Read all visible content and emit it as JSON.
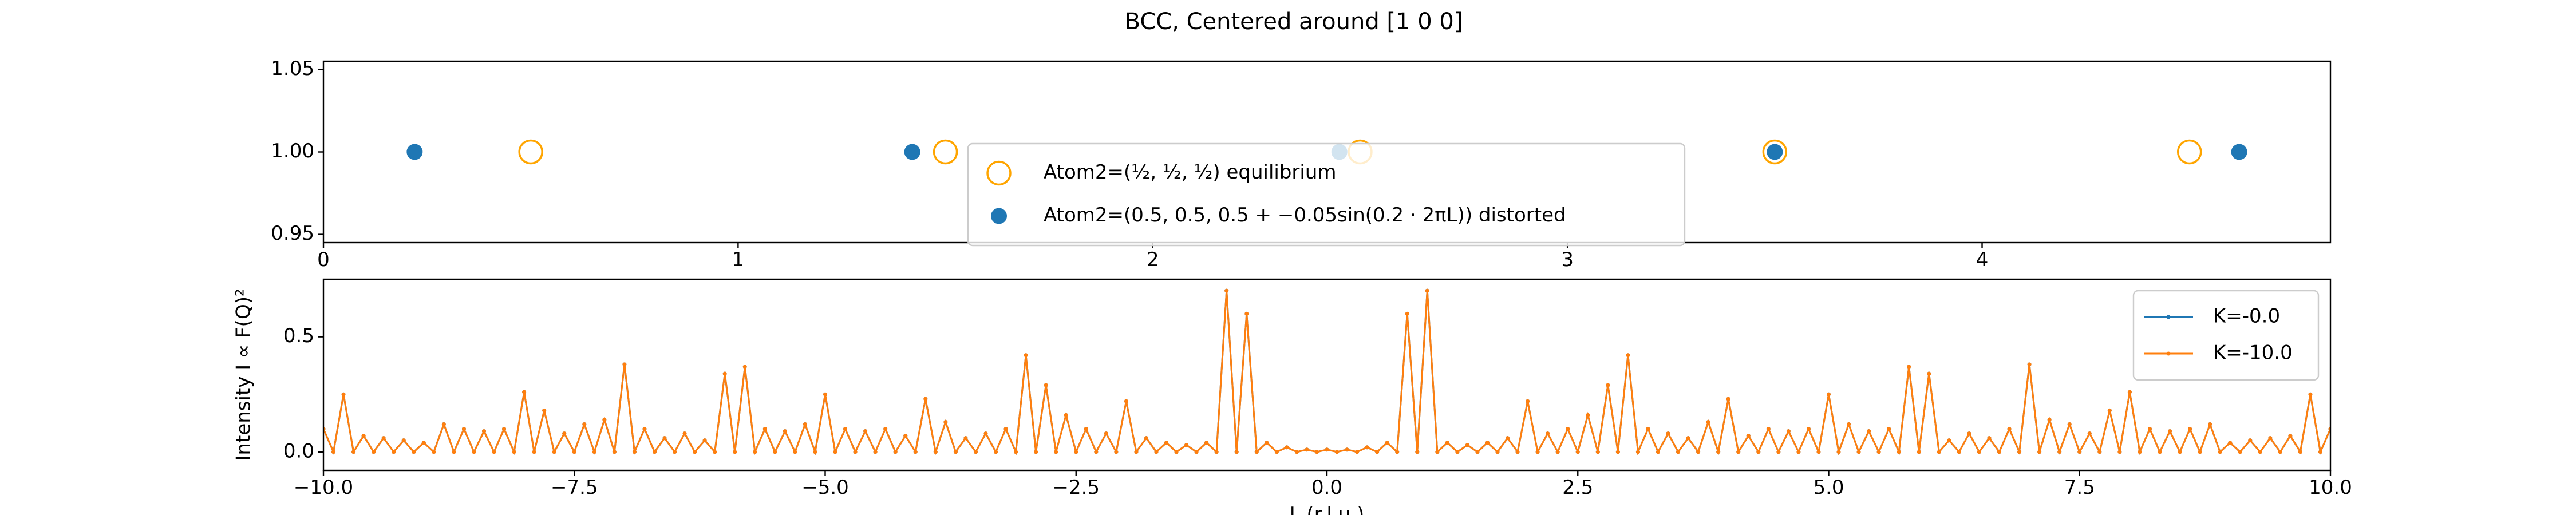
{
  "chart_data": [
    {
      "type": "scatter",
      "title": "BCC, Centered around [1 0 0]",
      "series": [
        {
          "name": "Atom2=(½, ½, ½) equilibrium",
          "color": "#ffa500",
          "filled": false,
          "x": [
            0.5,
            1.5,
            2.5,
            3.5,
            4.5
          ],
          "values": [
            1,
            1,
            1,
            1,
            1
          ]
        },
        {
          "name": "Atom2=(0.5, 0.5, 0.5 + −0.05sin(0.2 · 2πL)) distorted",
          "color": "#1f77b4",
          "filled": true,
          "x": [
            0.22,
            1.42,
            2.45,
            3.5,
            4.62
          ],
          "values": [
            1,
            1,
            1,
            1,
            1
          ]
        }
      ],
      "xlim": [
        0,
        4.84
      ],
      "xticks": [
        0,
        1,
        2,
        3,
        4
      ],
      "ylim": [
        0.945,
        1.055
      ],
      "yticks": [
        0.95,
        {
          "value": 1,
          "label": "1.00"
        },
        1.05
      ],
      "legend": "lower center"
    },
    {
      "type": "line",
      "x_label": "L (r.l.u.)",
      "y_label": "Intensity I ∝ F(Q)²",
      "x": [
        -10,
        -9.9,
        -9.8,
        -9.7,
        -9.6,
        -9.5,
        -9.4,
        -9.3,
        -9.2,
        -9.1,
        -9,
        -8.9,
        -8.8,
        -8.7,
        -8.6,
        -8.5,
        -8.4,
        -8.3,
        -8.2,
        -8.1,
        -8,
        -7.9,
        -7.8,
        -7.7,
        -7.6,
        -7.5,
        -7.4,
        -7.3,
        -7.2,
        -7.1,
        -7,
        -6.9,
        -6.8,
        -6.7,
        -6.6,
        -6.5,
        -6.4,
        -6.3,
        -6.2,
        -6.1,
        -6,
        -5.9,
        -5.8,
        -5.7,
        -5.6,
        -5.5,
        -5.4,
        -5.3,
        -5.2,
        -5.1,
        -5,
        -4.9,
        -4.8,
        -4.7,
        -4.6,
        -4.5,
        -4.4,
        -4.3,
        -4.2,
        -4.1,
        -4,
        -3.9,
        -3.8,
        -3.7,
        -3.6,
        -3.5,
        -3.4,
        -3.3,
        -3.2,
        -3.1,
        -3,
        -2.9,
        -2.8,
        -2.7,
        -2.6,
        -2.5,
        -2.4,
        -2.3,
        -2.2,
        -2.1,
        -2,
        -1.9,
        -1.8,
        -1.7,
        -1.6,
        -1.5,
        -1.4,
        -1.3,
        -1.2,
        -1.1,
        -1,
        -0.9,
        -0.8,
        -0.7,
        -0.6,
        -0.5,
        -0.4,
        -0.3,
        -0.2,
        -0.1,
        0,
        0.1,
        0.2,
        0.3,
        0.4,
        0.5,
        0.6,
        0.7,
        0.8,
        0.9,
        1,
        1.1,
        1.2,
        1.3,
        1.4,
        1.5,
        1.6,
        1.7,
        1.8,
        1.9,
        2,
        2.1,
        2.2,
        2.3,
        2.4,
        2.5,
        2.6,
        2.7,
        2.8,
        2.9,
        3,
        3.1,
        3.2,
        3.3,
        3.4,
        3.5,
        3.6,
        3.7,
        3.8,
        3.9,
        4,
        4.1,
        4.2,
        4.3,
        4.4,
        4.5,
        4.6,
        4.7,
        4.8,
        4.9,
        5,
        5.1,
        5.2,
        5.3,
        5.4,
        5.5,
        5.6,
        5.7,
        5.8,
        5.9,
        6,
        6.1,
        6.2,
        6.3,
        6.4,
        6.5,
        6.6,
        6.7,
        6.8,
        6.9,
        7,
        7.1,
        7.2,
        7.3,
        7.4,
        7.5,
        7.6,
        7.7,
        7.8,
        7.9,
        8,
        8.1,
        8.2,
        8.3,
        8.4,
        8.5,
        8.6,
        8.7,
        8.8,
        8.9,
        9,
        9.1,
        9.2,
        9.3,
        9.4,
        9.5,
        9.6,
        9.7,
        9.8,
        9.9,
        10
      ],
      "series": [
        {
          "name": "K=-0.0",
          "color": "#1f77b4",
          "values": [
            0.1,
            0,
            0.25,
            0,
            0.07,
            0,
            0.06,
            0,
            0.05,
            0,
            0.04,
            0,
            0.12,
            0,
            0.1,
            0,
            0.09,
            0,
            0.1,
            0,
            0.26,
            0,
            0.18,
            0,
            0.08,
            0,
            0.12,
            0,
            0.14,
            0,
            0.38,
            0,
            0.1,
            0,
            0.06,
            0,
            0.08,
            0,
            0.05,
            0,
            0.34,
            0,
            0.37,
            0,
            0.1,
            0,
            0.09,
            0,
            0.12,
            0,
            0.25,
            0,
            0.1,
            0,
            0.09,
            0,
            0.1,
            0,
            0.07,
            0,
            0.23,
            0,
            0.13,
            0,
            0.06,
            0,
            0.08,
            0,
            0.1,
            0,
            0.42,
            0,
            0.29,
            0,
            0.16,
            0,
            0.1,
            0,
            0.08,
            0,
            0.22,
            0,
            0.06,
            0,
            0.04,
            0,
            0.03,
            0,
            0.04,
            0,
            0.7,
            0,
            0.6,
            0,
            0.04,
            0,
            0.02,
            0,
            0.01,
            0,
            0.01,
            0,
            0.01,
            0,
            0.02,
            0,
            0.04,
            0,
            0.6,
            0,
            0.7,
            0,
            0.04,
            0,
            0.03,
            0,
            0.04,
            0,
            0.06,
            0,
            0.22,
            0,
            0.08,
            0,
            0.1,
            0,
            0.16,
            0,
            0.29,
            0,
            0.42,
            0,
            0.1,
            0,
            0.08,
            0,
            0.06,
            0,
            0.13,
            0,
            0.23,
            0,
            0.07,
            0,
            0.1,
            0,
            0.09,
            0,
            0.1,
            0,
            0.25,
            0,
            0.12,
            0,
            0.09,
            0,
            0.1,
            0,
            0.37,
            0,
            0.34,
            0,
            0.05,
            0,
            0.08,
            0,
            0.06,
            0,
            0.1,
            0,
            0.38,
            0,
            0.14,
            0,
            0.12,
            0,
            0.08,
            0,
            0.18,
            0,
            0.26,
            0,
            0.1,
            0,
            0.09,
            0,
            0.1,
            0,
            0.12,
            0,
            0.04,
            0,
            0.05,
            0,
            0.06,
            0,
            0.07,
            0,
            0.25,
            0,
            0.1
          ]
        },
        {
          "name": "K=-10.0",
          "color": "#ff7f0e",
          "values": [
            0.1,
            0,
            0.25,
            0,
            0.07,
            0,
            0.06,
            0,
            0.05,
            0,
            0.04,
            0,
            0.12,
            0,
            0.1,
            0,
            0.09,
            0,
            0.1,
            0,
            0.26,
            0,
            0.18,
            0,
            0.08,
            0,
            0.12,
            0,
            0.14,
            0,
            0.38,
            0,
            0.1,
            0,
            0.06,
            0,
            0.08,
            0,
            0.05,
            0,
            0.34,
            0,
            0.37,
            0,
            0.1,
            0,
            0.09,
            0,
            0.12,
            0,
            0.25,
            0,
            0.1,
            0,
            0.09,
            0,
            0.1,
            0,
            0.07,
            0,
            0.23,
            0,
            0.13,
            0,
            0.06,
            0,
            0.08,
            0,
            0.1,
            0,
            0.42,
            0,
            0.29,
            0,
            0.16,
            0,
            0.1,
            0,
            0.08,
            0,
            0.22,
            0,
            0.06,
            0,
            0.04,
            0,
            0.03,
            0,
            0.04,
            0,
            0.7,
            0,
            0.6,
            0,
            0.04,
            0,
            0.02,
            0,
            0.01,
            0,
            0.01,
            0,
            0.01,
            0,
            0.02,
            0,
            0.04,
            0,
            0.6,
            0,
            0.7,
            0,
            0.04,
            0,
            0.03,
            0,
            0.04,
            0,
            0.06,
            0,
            0.22,
            0,
            0.08,
            0,
            0.1,
            0,
            0.16,
            0,
            0.29,
            0,
            0.42,
            0,
            0.1,
            0,
            0.08,
            0,
            0.06,
            0,
            0.13,
            0,
            0.23,
            0,
            0.07,
            0,
            0.1,
            0,
            0.09,
            0,
            0.1,
            0,
            0.25,
            0,
            0.12,
            0,
            0.09,
            0,
            0.1,
            0,
            0.37,
            0,
            0.34,
            0,
            0.05,
            0,
            0.08,
            0,
            0.06,
            0,
            0.1,
            0,
            0.38,
            0,
            0.14,
            0,
            0.12,
            0,
            0.08,
            0,
            0.18,
            0,
            0.26,
            0,
            0.1,
            0,
            0.09,
            0,
            0.1,
            0,
            0.12,
            0,
            0.04,
            0,
            0.05,
            0,
            0.06,
            0,
            0.07,
            0,
            0.25,
            0,
            0.1
          ]
        }
      ],
      "xlim": [
        -10,
        10
      ],
      "xticks": [
        {
          "value": -10,
          "label": "−10.0"
        },
        {
          "value": -7.5,
          "label": "−7.5"
        },
        {
          "value": -5,
          "label": "−5.0"
        },
        {
          "value": -2.5,
          "label": "−2.5"
        },
        {
          "value": 0,
          "label": "0.0"
        },
        2.5,
        {
          "value": 5,
          "label": "5.0"
        },
        7.5,
        {
          "value": 10,
          "label": "10.0"
        }
      ],
      "ylim": [
        -0.08,
        0.75
      ],
      "yticks": [
        {
          "value": 0,
          "label": "0.0"
        },
        0.5
      ],
      "legend": "upper right"
    }
  ]
}
